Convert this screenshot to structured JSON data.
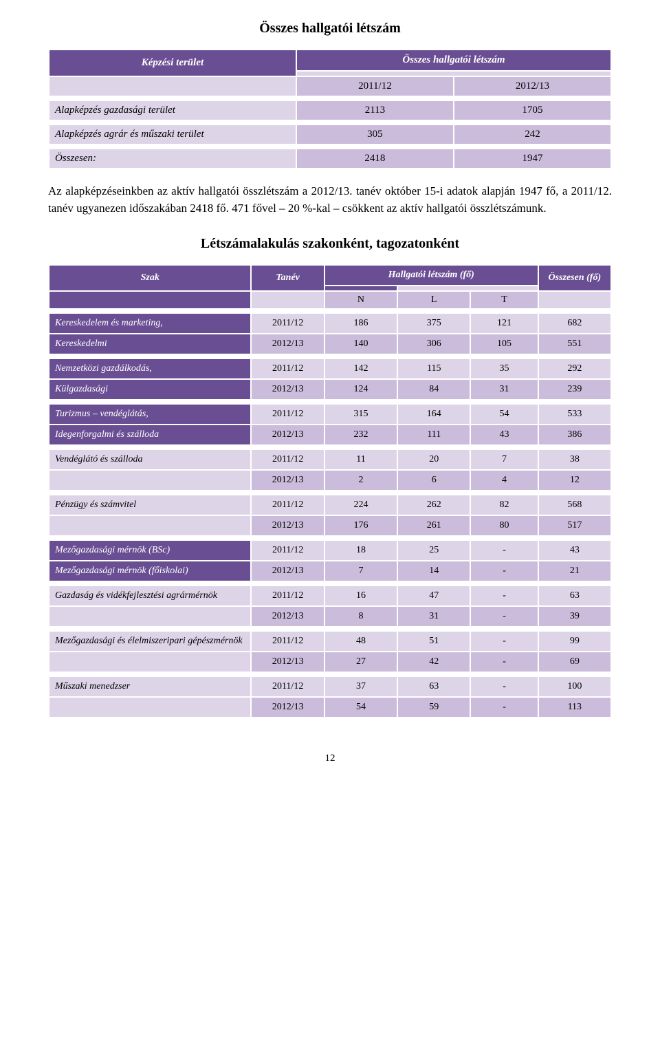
{
  "title_main": "Összes hallgatói létszám",
  "table1": {
    "header_left": "Képzési terület",
    "header_right": "Összes hallgatói létszám",
    "years": [
      "2011/12",
      "2012/13"
    ],
    "rows": [
      {
        "label": "Alapképzés gazdasági terület",
        "v": [
          "2113",
          "1705"
        ]
      },
      {
        "label": "Alapképzés agrár és műszaki terület",
        "v": [
          "305",
          "242"
        ]
      },
      {
        "label": "Összesen:",
        "v": [
          "2418",
          "1947"
        ]
      }
    ]
  },
  "body_paragraph": "Az alapképzéseinkben az aktív hallgatói összlétszám a 2012/13. tanév október 15-i adatok alapján 1947 fő, a 2011/12. tanév ugyanezen időszakában 2418 fő. 471 fővel – 20 %-kal – csökkent az aktív hallgatói összlétszámunk.",
  "title_sub": "Létszámalakulás szakonként, tagozatonként",
  "table2": {
    "hdr_szak": "Szak",
    "hdr_tanev": "Tanév",
    "hdr_letszam": "Hallgatói létszám (fő)",
    "hdr_ossz": "Összesen (fő)",
    "sub_cols": [
      "N",
      "L",
      "T"
    ],
    "groups": [
      {
        "dark": true,
        "rows": [
          {
            "label": "Kereskedelem és marketing,",
            "v": [
              "2011/12",
              "186",
              "375",
              "121",
              "682"
            ]
          },
          {
            "label": "Kereskedelmi",
            "v": [
              "2012/13",
              "140",
              "306",
              "105",
              "551"
            ]
          }
        ]
      },
      {
        "dark": true,
        "rows": [
          {
            "label": "Nemzetközi gazdálkodás,",
            "v": [
              "2011/12",
              "142",
              "115",
              "35",
              "292"
            ]
          },
          {
            "label": "Külgazdasági",
            "v": [
              "2012/13",
              "124",
              "84",
              "31",
              "239"
            ]
          }
        ]
      },
      {
        "dark": true,
        "rows": [
          {
            "label": "Turizmus – vendéglátás,",
            "v": [
              "2011/12",
              "315",
              "164",
              "54",
              "533"
            ]
          },
          {
            "label": "Idegenforgalmi és szálloda",
            "v": [
              "2012/13",
              "232",
              "111",
              "43",
              "386"
            ]
          }
        ]
      },
      {
        "dark": false,
        "rows": [
          {
            "label": "Vendéglátó és szálloda",
            "v": [
              "2011/12",
              "11",
              "20",
              "7",
              "38"
            ]
          },
          {
            "label": "",
            "v": [
              "2012/13",
              "2",
              "6",
              "4",
              "12"
            ]
          }
        ]
      },
      {
        "dark": false,
        "rows": [
          {
            "label": "Pénzügy és számvitel",
            "v": [
              "2011/12",
              "224",
              "262",
              "82",
              "568"
            ]
          },
          {
            "label": "",
            "v": [
              "2012/13",
              "176",
              "261",
              "80",
              "517"
            ]
          }
        ]
      },
      {
        "dark": true,
        "rows": [
          {
            "label": "Mezőgazdasági mérnök (BSc)",
            "v": [
              "2011/12",
              "18",
              "25",
              "-",
              "43"
            ]
          },
          {
            "label": "Mezőgazdasági mérnök (főiskolai)",
            "v": [
              "2012/13",
              "7",
              "14",
              "-",
              "21"
            ]
          }
        ]
      },
      {
        "dark": false,
        "rows": [
          {
            "label": "Gazdaság és vidékfejlesztési agrármérnök",
            "v": [
              "2011/12",
              "16",
              "47",
              "-",
              "63"
            ]
          },
          {
            "label": "",
            "v": [
              "2012/13",
              "8",
              "31",
              "-",
              "39"
            ]
          }
        ]
      },
      {
        "dark": false,
        "rows": [
          {
            "label": "Mezőgazdasági és élelmiszeripari gépészmérnök",
            "v": [
              "2011/12",
              "48",
              "51",
              "-",
              "99"
            ]
          },
          {
            "label": "",
            "v": [
              "2012/13",
              "27",
              "42",
              "-",
              "69"
            ]
          }
        ]
      },
      {
        "dark": false,
        "rows": [
          {
            "label": "Műszaki menedzser",
            "v": [
              "2011/12",
              "37",
              "63",
              "-",
              "100"
            ]
          },
          {
            "label": "",
            "v": [
              "2012/13",
              "54",
              "59",
              "-",
              "113"
            ]
          }
        ]
      }
    ]
  },
  "page_number": "12",
  "colors": {
    "header_bg": "#6a4e93",
    "header_fg": "#ffffff",
    "cell_light": "#ded4e8",
    "cell_mid": "#cbbcdb"
  }
}
